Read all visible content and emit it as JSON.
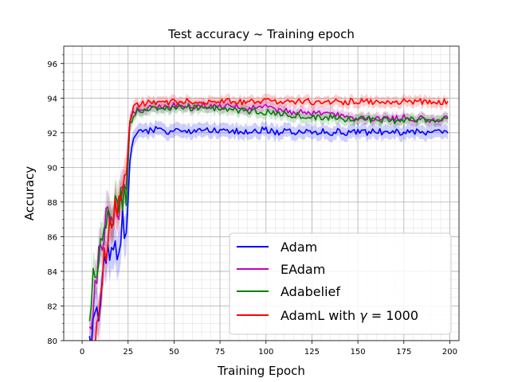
{
  "chart_data": {
    "type": "line",
    "title": "Test accuracy ~ Training epoch",
    "xlabel": "Training Epoch",
    "ylabel": "Accuracy",
    "xlim": [
      -10,
      205
    ],
    "ylim": [
      80,
      97
    ],
    "xticks": [
      0,
      25,
      50,
      75,
      100,
      125,
      150,
      175,
      200
    ],
    "yticks": [
      80,
      82,
      84,
      86,
      88,
      90,
      92,
      94,
      96
    ],
    "grid": true,
    "minor_grid": true,
    "legend_position": "lower-right",
    "series": [
      {
        "name": "Adam",
        "color": "#0000ff",
        "band_color": "#0000ff",
        "x": [
          4,
          6,
          8,
          10,
          12,
          14,
          16,
          18,
          20,
          22,
          24,
          26,
          28,
          30,
          35,
          40,
          45,
          50,
          55,
          60,
          65,
          70,
          75,
          80,
          85,
          90,
          95,
          100,
          105,
          110,
          115,
          120,
          125,
          130,
          135,
          140,
          145,
          150,
          155,
          160,
          165,
          170,
          175,
          180,
          185,
          190,
          195,
          199
        ],
        "values": [
          79.5,
          80.5,
          82.5,
          81.5,
          84.0,
          84.8,
          84.5,
          85.5,
          85.0,
          86.8,
          86.2,
          90.5,
          91.8,
          92.0,
          92.1,
          92.2,
          92.0,
          92.2,
          92.1,
          92.0,
          92.2,
          92.1,
          92.1,
          92.0,
          92.1,
          92.0,
          92.1,
          92.2,
          92.0,
          92.1,
          92.0,
          92.1,
          92.0,
          92.1,
          92.0,
          92.1,
          92.0,
          92.1,
          92.0,
          92.1,
          92.0,
          92.1,
          92.0,
          92.1,
          92.0,
          92.1,
          92.0,
          92.0
        ],
        "band": [
          0.8,
          1.2,
          1.2,
          1.2,
          1.2,
          1.2,
          1.2,
          1.2,
          1.2,
          1.2,
          1.2,
          0.8,
          0.5,
          0.4,
          0.4,
          0.4,
          0.4,
          0.4,
          0.4,
          0.4,
          0.4,
          0.4,
          0.4,
          0.4,
          0.4,
          0.4,
          0.4,
          0.4,
          0.4,
          0.4,
          0.4,
          0.4,
          0.4,
          0.4,
          0.4,
          0.4,
          0.4,
          0.4,
          0.4,
          0.4,
          0.4,
          0.4,
          0.4,
          0.4,
          0.4,
          0.4,
          0.4,
          0.4
        ]
      },
      {
        "name": "EAdam",
        "color": "#bf00bf",
        "band_color": "#bf00bf",
        "x": [
          4,
          6,
          8,
          10,
          12,
          14,
          16,
          18,
          20,
          22,
          24,
          26,
          28,
          30,
          35,
          40,
          45,
          50,
          55,
          60,
          65,
          70,
          75,
          80,
          85,
          90,
          95,
          100,
          105,
          110,
          115,
          120,
          125,
          130,
          135,
          140,
          145,
          150,
          155,
          160,
          165,
          170,
          175,
          180,
          185,
          190,
          195,
          199
        ],
        "values": [
          80.0,
          81.5,
          84.0,
          85.5,
          86.5,
          87.0,
          86.8,
          87.5,
          87.8,
          88.2,
          88.5,
          92.8,
          93.2,
          93.3,
          93.4,
          93.5,
          93.5,
          93.6,
          93.6,
          93.5,
          93.6,
          93.6,
          93.5,
          93.5,
          93.5,
          93.4,
          93.4,
          93.5,
          93.3,
          93.3,
          93.2,
          93.2,
          93.1,
          93.1,
          93.0,
          93.0,
          92.9,
          92.9,
          92.9,
          92.8,
          92.8,
          92.8,
          92.9,
          92.8,
          92.8,
          92.7,
          92.8,
          92.8
        ],
        "band": [
          0.8,
          1.0,
          1.0,
          1.0,
          1.0,
          1.0,
          1.0,
          1.0,
          1.0,
          1.0,
          1.0,
          0.5,
          0.3,
          0.3,
          0.3,
          0.3,
          0.3,
          0.3,
          0.3,
          0.3,
          0.3,
          0.3,
          0.3,
          0.3,
          0.3,
          0.3,
          0.3,
          0.3,
          0.3,
          0.3,
          0.3,
          0.3,
          0.3,
          0.3,
          0.3,
          0.3,
          0.3,
          0.3,
          0.3,
          0.3,
          0.3,
          0.3,
          0.3,
          0.3,
          0.3,
          0.3,
          0.3,
          0.3
        ]
      },
      {
        "name": "Adabelief",
        "color": "#008000",
        "band_color": "#008000",
        "x": [
          4,
          6,
          8,
          10,
          12,
          14,
          16,
          18,
          20,
          22,
          24,
          26,
          28,
          30,
          35,
          40,
          45,
          50,
          55,
          60,
          65,
          70,
          75,
          80,
          85,
          90,
          95,
          100,
          105,
          110,
          115,
          120,
          125,
          130,
          135,
          140,
          145,
          150,
          155,
          160,
          165,
          170,
          175,
          180,
          185,
          190,
          195,
          199
        ],
        "values": [
          80.5,
          84.5,
          83.5,
          85.5,
          86.0,
          87.0,
          87.2,
          87.5,
          88.0,
          88.0,
          88.5,
          92.5,
          93.0,
          93.2,
          93.3,
          93.4,
          93.4,
          93.4,
          93.5,
          93.4,
          93.5,
          93.4,
          93.4,
          93.3,
          93.3,
          93.2,
          93.2,
          93.2,
          93.1,
          93.1,
          93.0,
          93.0,
          92.9,
          92.9,
          92.9,
          92.8,
          92.8,
          92.8,
          92.8,
          92.7,
          92.8,
          92.7,
          92.7,
          92.8,
          92.7,
          92.7,
          92.7,
          92.7
        ],
        "band": [
          0.8,
          1.0,
          1.0,
          1.0,
          1.0,
          1.0,
          1.0,
          1.0,
          1.0,
          1.0,
          1.0,
          0.5,
          0.3,
          0.3,
          0.3,
          0.3,
          0.3,
          0.3,
          0.3,
          0.3,
          0.3,
          0.3,
          0.3,
          0.3,
          0.3,
          0.3,
          0.3,
          0.3,
          0.3,
          0.3,
          0.3,
          0.3,
          0.3,
          0.3,
          0.3,
          0.3,
          0.3,
          0.3,
          0.3,
          0.3,
          0.3,
          0.3,
          0.3,
          0.3,
          0.3,
          0.3,
          0.3,
          0.3
        ]
      },
      {
        "name": "AdamL with γ = 1000",
        "color": "#ff0000",
        "band_color": "#ff0000",
        "x": [
          4,
          6,
          8,
          10,
          12,
          14,
          16,
          18,
          20,
          22,
          24,
          26,
          28,
          30,
          35,
          40,
          45,
          50,
          55,
          60,
          65,
          70,
          75,
          80,
          85,
          90,
          95,
          100,
          105,
          110,
          115,
          120,
          125,
          130,
          135,
          140,
          145,
          150,
          155,
          160,
          165,
          170,
          175,
          180,
          185,
          190,
          195,
          199
        ],
        "values": [
          79.0,
          79.5,
          81.0,
          83.0,
          85.0,
          86.0,
          86.5,
          87.5,
          88.0,
          88.5,
          89.0,
          92.8,
          93.4,
          93.6,
          93.7,
          93.8,
          93.7,
          93.8,
          93.8,
          93.8,
          93.8,
          93.8,
          93.8,
          93.8,
          93.8,
          93.8,
          93.8,
          93.8,
          93.8,
          93.8,
          93.8,
          93.8,
          93.8,
          93.8,
          93.8,
          93.8,
          93.8,
          93.8,
          93.8,
          93.8,
          93.8,
          93.8,
          93.8,
          93.8,
          93.8,
          93.8,
          93.8,
          93.8
        ],
        "band": [
          0.8,
          1.0,
          1.0,
          1.0,
          1.0,
          1.0,
          1.0,
          1.0,
          1.0,
          1.0,
          1.0,
          0.4,
          0.3,
          0.3,
          0.3,
          0.3,
          0.3,
          0.3,
          0.3,
          0.3,
          0.3,
          0.3,
          0.3,
          0.3,
          0.3,
          0.3,
          0.3,
          0.3,
          0.3,
          0.3,
          0.3,
          0.3,
          0.3,
          0.3,
          0.3,
          0.3,
          0.3,
          0.3,
          0.3,
          0.3,
          0.3,
          0.3,
          0.3,
          0.3,
          0.3,
          0.3,
          0.3,
          0.3
        ]
      }
    ],
    "legend": {
      "labels": [
        "Adam",
        "EAdam",
        "Adabelief"
      ],
      "label_adaml_prefix": "AdamL with ",
      "label_adaml_symbol": "γ",
      "label_adaml_suffix": " = 1000"
    }
  }
}
